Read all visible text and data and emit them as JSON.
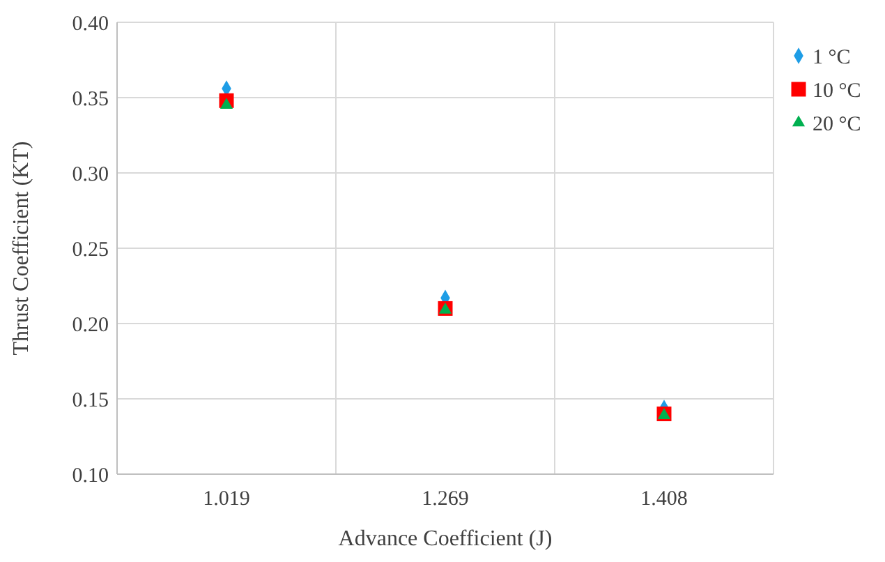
{
  "chart_data": {
    "type": "scatter",
    "xlabel": "Advance Coefficient (J)",
    "ylabel": "Thrust Coefficient (KT)",
    "categories": [
      "1.019",
      "1.269",
      "1.408"
    ],
    "series": [
      {
        "name": "1 °C",
        "color": "#1e9de6",
        "marker": "diamond",
        "values": [
          0.356,
          0.217,
          0.144
        ]
      },
      {
        "name": "10 °C",
        "color": "#ff0000",
        "marker": "square",
        "values": [
          0.348,
          0.21,
          0.14
        ]
      },
      {
        "name": "20 °C",
        "color": "#00b050",
        "marker": "triangle",
        "values": [
          0.345,
          0.209,
          0.139
        ]
      }
    ],
    "ylim": [
      0.1,
      0.4
    ],
    "yticks": [
      {
        "value": 0.1,
        "label": "0.10"
      },
      {
        "value": 0.15,
        "label": "0.15"
      },
      {
        "value": 0.2,
        "label": "0.20"
      },
      {
        "value": 0.25,
        "label": "0.25"
      },
      {
        "value": 0.3,
        "label": "0.30"
      },
      {
        "value": 0.35,
        "label": "0.35"
      },
      {
        "value": 0.4,
        "label": "0.40"
      }
    ],
    "grid": true,
    "legend": "right"
  }
}
